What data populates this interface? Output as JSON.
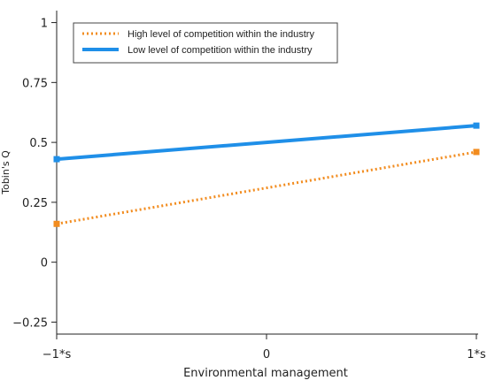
{
  "chart_data": {
    "type": "line",
    "xlabel": "Environmental management",
    "ylabel": "Tobin's Q",
    "categories": [
      "−1*s",
      "1*s"
    ],
    "x_tick_labels": [
      "−1*s",
      "0",
      "1*s"
    ],
    "y_tick_labels": [
      "−0.25",
      "0",
      "0.25",
      "0.5",
      "0.75",
      "1"
    ],
    "y_ticks": [
      -0.25,
      0,
      0.25,
      0.5,
      0.75,
      1
    ],
    "ylim": [
      -0.3,
      1.05
    ],
    "grid": false,
    "legend_position": "top-left",
    "series": [
      {
        "name": "High level of competition within the industry",
        "style": "dotted",
        "color": "#f28c1f",
        "values": [
          0.16,
          0.46
        ]
      },
      {
        "name": "Low level of competition within the industry",
        "style": "solid",
        "color": "#1f8fe8",
        "values": [
          0.43,
          0.57
        ]
      }
    ]
  }
}
